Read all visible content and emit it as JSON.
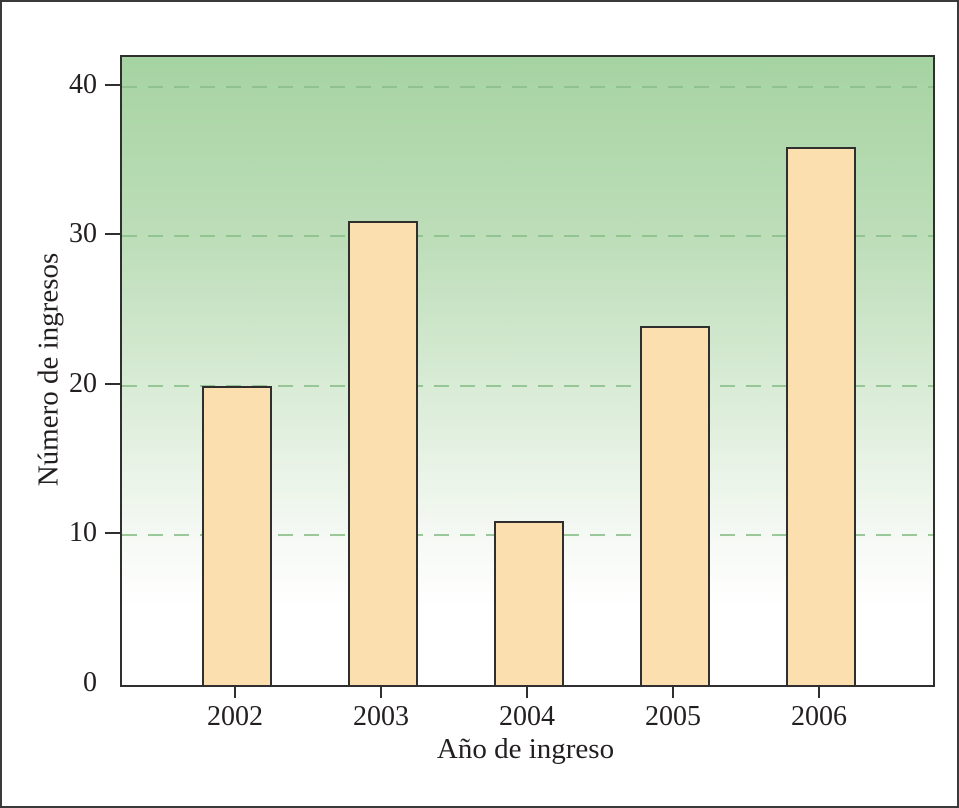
{
  "figure": {
    "background": "#ffffff",
    "outer_border_color": "#3a3a3a",
    "frame_color": "#2f2f2f",
    "text_color": "#231f20"
  },
  "chart_data": {
    "type": "bar",
    "categories": [
      "2002",
      "2003",
      "2004",
      "2005",
      "2006"
    ],
    "values": [
      20,
      31,
      11,
      24,
      36
    ],
    "title": "",
    "xlabel": "Año de ingreso",
    "ylabel": "Número de ingresos",
    "ylim": [
      0,
      42
    ],
    "yticks": [
      0,
      10,
      20,
      30,
      40
    ],
    "grid": {
      "axis": "y",
      "style": "dashed",
      "color": "#8abf8a",
      "at": [
        10,
        20,
        30,
        40
      ]
    },
    "legend": null,
    "bar_fill": "#fcdfae",
    "bar_border": "#2f2f2f",
    "plot_background": {
      "gradient_top": "#a6d3a2",
      "gradient_bottom": "#ffffff",
      "direction": "top-to-bottom"
    }
  }
}
